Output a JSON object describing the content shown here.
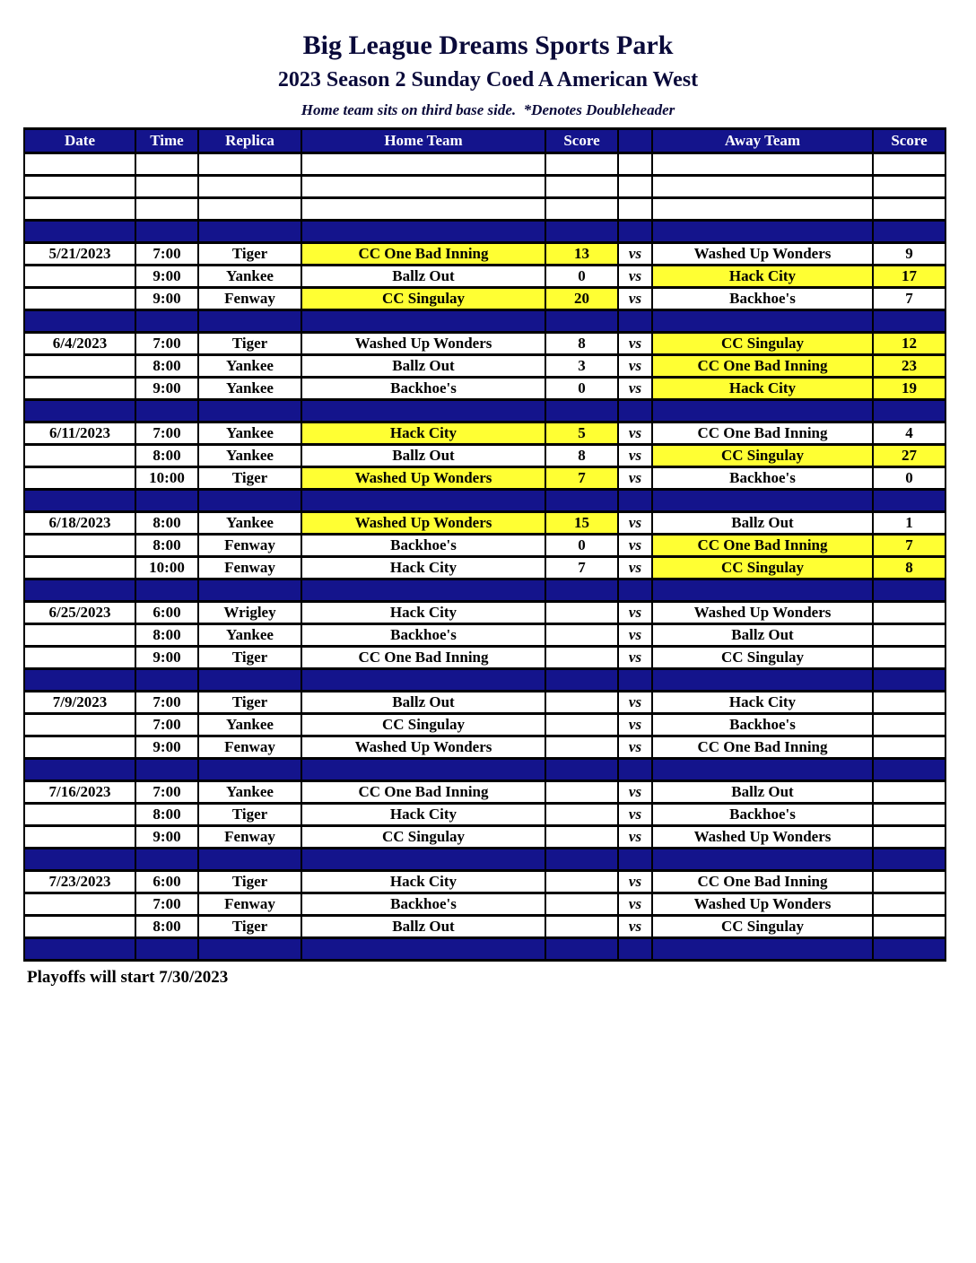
{
  "page": {
    "title": "Big League Dreams Sports Park",
    "subtitle": "2023 Season 2 Sunday Coed A American West",
    "note": "Home team sits on third base side.  *Denotes Doubleheader",
    "footer": "Playoffs will start 7/30/2023"
  },
  "colors": {
    "navy": "#14148c",
    "highlight_yellow": "#ffff33"
  },
  "table": {
    "headers": [
      "Date",
      "Time",
      "Replica",
      "Home Team",
      "Score",
      "",
      "Away Team",
      "Score"
    ],
    "vs_label": "vs",
    "leading_empty_rows": 3,
    "groups": [
      {
        "date": "5/21/2023",
        "games": [
          {
            "date": "5/21/2023",
            "time": "7:00",
            "replica": "Tiger",
            "home_team": "CC One Bad Inning",
            "home_score": "13",
            "away_team": "Washed Up Wonders",
            "away_score": "9",
            "winner": "home"
          },
          {
            "date": "",
            "time": "9:00",
            "replica": "Yankee",
            "home_team": "Ballz Out",
            "home_score": "0",
            "away_team": "Hack City",
            "away_score": "17",
            "winner": "away"
          },
          {
            "date": "",
            "time": "9:00",
            "replica": "Fenway",
            "home_team": "CC Singulay",
            "home_score": "20",
            "away_team": "Backhoe's",
            "away_score": "7",
            "winner": "home"
          }
        ]
      },
      {
        "date": "6/4/2023",
        "games": [
          {
            "date": "6/4/2023",
            "time": "7:00",
            "replica": "Tiger",
            "home_team": "Washed Up Wonders",
            "home_score": "8",
            "away_team": "CC Singulay",
            "away_score": "12",
            "winner": "away"
          },
          {
            "date": "",
            "time": "8:00",
            "replica": "Yankee",
            "home_team": "Ballz Out",
            "home_score": "3",
            "away_team": "CC One Bad Inning",
            "away_score": "23",
            "winner": "away"
          },
          {
            "date": "",
            "time": "9:00",
            "replica": "Yankee",
            "home_team": "Backhoe's",
            "home_score": "0",
            "away_team": "Hack City",
            "away_score": "19",
            "winner": "away"
          }
        ]
      },
      {
        "date": "6/11/2023",
        "games": [
          {
            "date": "6/11/2023",
            "time": "7:00",
            "replica": "Yankee",
            "home_team": "Hack City",
            "home_score": "5",
            "away_team": "CC One Bad Inning",
            "away_score": "4",
            "winner": "home"
          },
          {
            "date": "",
            "time": "8:00",
            "replica": "Yankee",
            "home_team": "Ballz Out",
            "home_score": "8",
            "away_team": "CC Singulay",
            "away_score": "27",
            "winner": "away"
          },
          {
            "date": "",
            "time": "10:00",
            "replica": "Tiger",
            "home_team": "Washed Up Wonders",
            "home_score": "7",
            "away_team": "Backhoe's",
            "away_score": "0",
            "winner": "home"
          }
        ]
      },
      {
        "date": "6/18/2023",
        "games": [
          {
            "date": "6/18/2023",
            "time": "8:00",
            "replica": "Yankee",
            "home_team": "Washed Up Wonders",
            "home_score": "15",
            "away_team": "Ballz Out",
            "away_score": "1",
            "winner": "home"
          },
          {
            "date": "",
            "time": "8:00",
            "replica": "Fenway",
            "home_team": "Backhoe's",
            "home_score": "0",
            "away_team": "CC One Bad Inning",
            "away_score": "7",
            "winner": "away"
          },
          {
            "date": "",
            "time": "10:00",
            "replica": "Fenway",
            "home_team": "Hack City",
            "home_score": "7",
            "away_team": "CC Singulay",
            "away_score": "8",
            "winner": "away"
          }
        ]
      },
      {
        "date": "6/25/2023",
        "games": [
          {
            "date": "6/25/2023",
            "time": "6:00",
            "replica": "Wrigley",
            "home_team": "Hack City",
            "home_score": "",
            "away_team": "Washed Up Wonders",
            "away_score": "",
            "winner": ""
          },
          {
            "date": "",
            "time": "8:00",
            "replica": "Yankee",
            "home_team": "Backhoe's",
            "home_score": "",
            "away_team": "Ballz Out",
            "away_score": "",
            "winner": ""
          },
          {
            "date": "",
            "time": "9:00",
            "replica": "Tiger",
            "home_team": "CC One Bad Inning",
            "home_score": "",
            "away_team": "CC Singulay",
            "away_score": "",
            "winner": ""
          }
        ]
      },
      {
        "date": "7/9/2023",
        "games": [
          {
            "date": "7/9/2023",
            "time": "7:00",
            "replica": "Tiger",
            "home_team": "Ballz Out",
            "home_score": "",
            "away_team": "Hack City",
            "away_score": "",
            "winner": ""
          },
          {
            "date": "",
            "time": "7:00",
            "replica": "Yankee",
            "home_team": "CC Singulay",
            "home_score": "",
            "away_team": "Backhoe's",
            "away_score": "",
            "winner": ""
          },
          {
            "date": "",
            "time": "9:00",
            "replica": "Fenway",
            "home_team": "Washed Up Wonders",
            "home_score": "",
            "away_team": "CC One Bad Inning",
            "away_score": "",
            "winner": ""
          }
        ]
      },
      {
        "date": "7/16/2023",
        "games": [
          {
            "date": "7/16/2023",
            "time": "7:00",
            "replica": "Yankee",
            "home_team": "CC One Bad Inning",
            "home_score": "",
            "away_team": "Ballz Out",
            "away_score": "",
            "winner": ""
          },
          {
            "date": "",
            "time": "8:00",
            "replica": "Tiger",
            "home_team": "Hack City",
            "home_score": "",
            "away_team": "Backhoe's",
            "away_score": "",
            "winner": ""
          },
          {
            "date": "",
            "time": "9:00",
            "replica": "Fenway",
            "home_team": "CC Singulay",
            "home_score": "",
            "away_team": "Washed Up Wonders",
            "away_score": "",
            "winner": ""
          }
        ]
      },
      {
        "date": "7/23/2023",
        "games": [
          {
            "date": "7/23/2023",
            "time": "6:00",
            "replica": "Tiger",
            "home_team": "Hack City",
            "home_score": "",
            "away_team": "CC One Bad Inning",
            "away_score": "",
            "winner": ""
          },
          {
            "date": "",
            "time": "7:00",
            "replica": "Fenway",
            "home_team": "Backhoe's",
            "home_score": "",
            "away_team": "Washed Up Wonders",
            "away_score": "",
            "winner": ""
          },
          {
            "date": "",
            "time": "8:00",
            "replica": "Tiger",
            "home_team": "Ballz Out",
            "home_score": "",
            "away_team": "CC Singulay",
            "away_score": "",
            "winner": ""
          }
        ]
      }
    ]
  }
}
